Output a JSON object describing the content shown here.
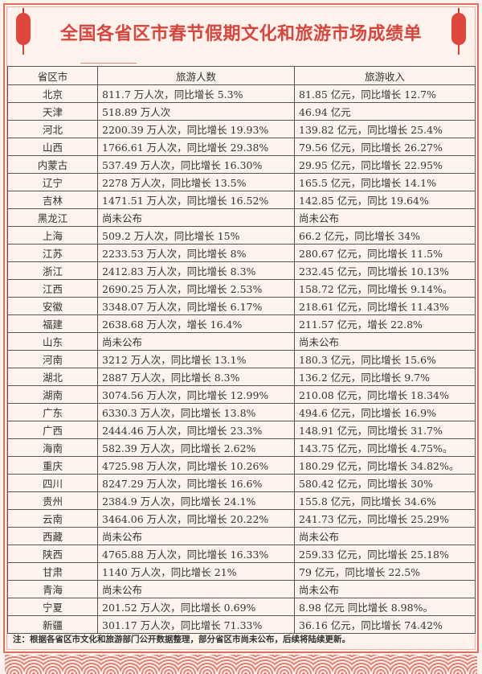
{
  "title": "全国各省区市春节假期文化和旅游市场成绩单",
  "colors": {
    "accent": "#d8453c",
    "background": "#fdf3ec"
  },
  "table": {
    "headers": [
      "省区市",
      "旅游人数",
      "旅游收入"
    ],
    "rows": [
      [
        "北京",
        "811.7 万人次，同比增长 5.3%",
        "81.85 亿元，同比增长 12.7%"
      ],
      [
        "天津",
        "518.89 万人次",
        "46.94 亿元"
      ],
      [
        "河北",
        "2200.39 万人次，同比增长 19.93%",
        "139.82 亿元，同比增长 25.4%"
      ],
      [
        "山西",
        "1766.61 万人次，同比增长 29.38%",
        "79.56 亿元，同比增长 26.27%"
      ],
      [
        "内蒙古",
        "537.49 万人次，同比增长 16.30%",
        "29.95 亿元，同比增长 22.95%"
      ],
      [
        "辽宁",
        "2278 万人次，同比增长 13.5%",
        "165.5 亿元，同比增长 14.1%"
      ],
      [
        "吉林",
        "1471.51 万人次，同比增长 16.52%",
        "142.85 亿元，同比 19.64%"
      ],
      [
        "黑龙江",
        "尚未公布",
        "尚未公布"
      ],
      [
        "上海",
        "509.2 万人次，同比增长 15%",
        "66.2 亿元，同比增长 34%"
      ],
      [
        "江苏",
        "2233.53 万人次，同比增长 8%",
        "280.67 亿元，同比增长 11.5%"
      ],
      [
        "浙江",
        "2412.83 万人次，同比增长 8.3%",
        "232.45 亿元，同比增长 10.13%"
      ],
      [
        "江西",
        "2690.25 万人次，同比增长  2.53%",
        "158.72 亿元，同比增长 9.14%。"
      ],
      [
        "安徽",
        "3348.07 万人次，同比增长 6.17%",
        "218.61 亿元，同比增长 11.43%"
      ],
      [
        "福建",
        "2638.68 万人次，增长 16.4%",
        "211.57 亿元，增长 22.8%"
      ],
      [
        "山东",
        "尚未公布",
        "尚未公布"
      ],
      [
        "河南",
        "3212 万人次，同比增长 13.1%",
        "180.3 亿元，同比增长 15.6%"
      ],
      [
        "湖北",
        "2887 万人次，同比增长 8.3%",
        "136.2 亿元，同比增长 9.7%"
      ],
      [
        "湖南",
        "3074.56 万人次，同比增长 12.99%",
        "210.08 亿元，同比增长 18.34%"
      ],
      [
        "广东",
        "6330.3 万人次，同比增长 13.8%",
        "494.6 亿元，同比增长 16.9%"
      ],
      [
        "广西",
        "2444.46 万人次，同比增长 23.3%",
        "148.91 亿元，同比增长 31.7%"
      ],
      [
        "海南",
        "582.39 万人次，同比增长 2.62%",
        "143.75 亿元，同比增长 4.75%。"
      ],
      [
        "重庆",
        "4725.98 万人次，同比增长 10.26%",
        "180.29 亿元，同比增长 34.82%。"
      ],
      [
        "四川",
        "8247.29 万人次，同比增长 16.6%",
        "580.42 亿元，同比增长 30%"
      ],
      [
        "贵州",
        "2384.9 万人次，同比增长 24.1%",
        "155.8 亿元，同比增长 34.6%"
      ],
      [
        "云南",
        "3464.06 万人次，同比增长 20.22%",
        "241.73 亿元，同比增长 25.29%"
      ],
      [
        "西藏",
        "尚未公布",
        "尚未公布"
      ],
      [
        "陕西",
        "4765.88 万人次，同比增长 16.33%",
        "259.33 亿元，同比增长 25.18%"
      ],
      [
        "甘肃",
        "1140 万人次，同比增长 21%",
        "79 亿元，同比增长 22.5%"
      ],
      [
        "青海",
        "尚未公布",
        "尚未公布"
      ],
      [
        "宁夏",
        "201.52 万人次，同比增长 0.69%",
        "8.98 亿元  同比增长 8.98%。"
      ],
      [
        "新疆",
        "301.17 万人次，同比增长 71.33%",
        "36.16 亿元，同比增长 74.42%"
      ]
    ]
  },
  "note": "注：根据各省区市文化和旅游部门公开数据整理，部分省区市尚未公布，后续将陆续更新。"
}
